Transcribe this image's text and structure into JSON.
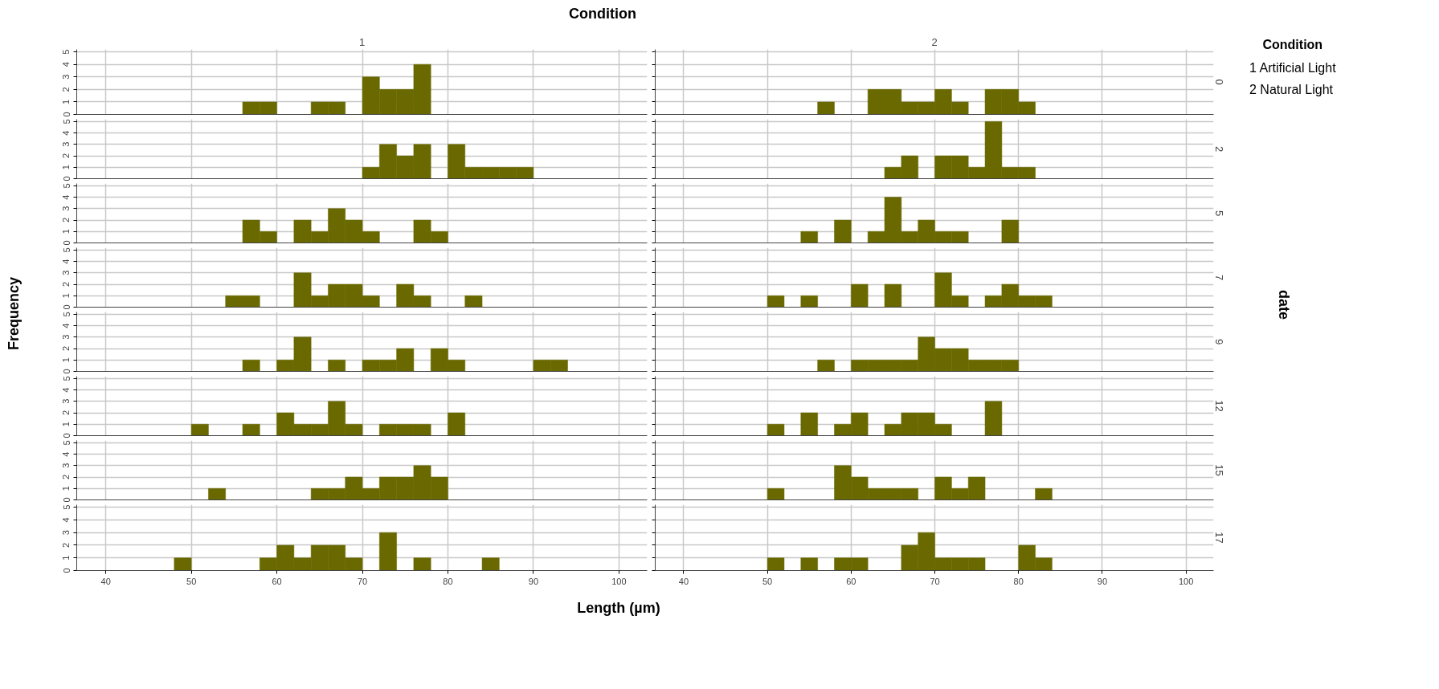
{
  "chart_data": [
    {
      "type": "histogram",
      "title": "1",
      "xlabel": "Length (µm)",
      "legend_title": "Condition",
      "annotations": [
        "Condition",
        "date",
        "Frequency",
        "1 Artificial Light",
        "2 Natural Light"
      ],
      "bins": [
        48,
        50,
        52,
        54,
        56,
        58,
        60,
        62,
        64,
        66,
        68,
        70,
        72,
        74,
        76,
        78,
        80,
        82,
        84,
        86,
        88,
        90,
        92,
        94
      ],
      "values": [
        0,
        0,
        0,
        0,
        1,
        1,
        0,
        0,
        1,
        1,
        0,
        3,
        2,
        2,
        4,
        0,
        0,
        0,
        0,
        0,
        0,
        0,
        0
      ],
      "color": "#696900",
      "xlim": [
        36.6,
        103.3
      ],
      "xticks": [
        40,
        50,
        60,
        70,
        80,
        90,
        100
      ],
      "ylim": [
        0,
        5.2
      ],
      "yticks": [
        0,
        1,
        2,
        3,
        4,
        5
      ],
      "grid": true,
      "tick_labels": "y"
    },
    {
      "type": "histogram",
      "title": "2",
      "y2label": "0",
      "bins": [
        48,
        50,
        52,
        54,
        56,
        58,
        60,
        62,
        64,
        66,
        68,
        70,
        72,
        74,
        76,
        78,
        80,
        82,
        84,
        86,
        88,
        90,
        92,
        94
      ],
      "values": [
        0,
        0,
        0,
        0,
        1,
        0,
        0,
        2,
        2,
        1,
        1,
        2,
        1,
        0,
        2,
        2,
        1,
        0,
        0,
        0,
        0,
        0,
        0
      ],
      "color": "#696900",
      "xlim": [
        36.6,
        103.3
      ],
      "xticks": [
        40,
        50,
        60,
        70,
        80,
        90,
        100
      ],
      "ylim": [
        0,
        5.2
      ],
      "yticks": [
        0,
        1,
        2,
        3,
        4,
        5
      ],
      "grid": true,
      "tick_labels": false
    },
    {
      "type": "histogram",
      "bins": [
        48,
        50,
        52,
        54,
        56,
        58,
        60,
        62,
        64,
        66,
        68,
        70,
        72,
        74,
        76,
        78,
        80,
        82,
        84,
        86,
        88,
        90,
        92,
        94
      ],
      "values": [
        0,
        0,
        0,
        0,
        0,
        0,
        0,
        0,
        0,
        0,
        0,
        1,
        3,
        2,
        3,
        0,
        3,
        1,
        1,
        1,
        1,
        0,
        0
      ],
      "color": "#696900",
      "xlim": [
        36.6,
        103.3
      ],
      "xticks": [
        40,
        50,
        60,
        70,
        80,
        90,
        100
      ],
      "ylim": [
        0,
        5.2
      ],
      "yticks": [
        0,
        1,
        2,
        3,
        4,
        5
      ],
      "grid": true,
      "tick_labels": "y"
    },
    {
      "type": "histogram",
      "y2label": "2",
      "bins": [
        48,
        50,
        52,
        54,
        56,
        58,
        60,
        62,
        64,
        66,
        68,
        70,
        72,
        74,
        76,
        78,
        80,
        82,
        84,
        86,
        88,
        90,
        92,
        94
      ],
      "values": [
        0,
        0,
        0,
        0,
        0,
        0,
        0,
        0,
        1,
        2,
        0,
        2,
        2,
        1,
        5,
        1,
        1,
        0,
        0,
        0,
        0,
        0,
        0
      ],
      "color": "#696900",
      "xlim": [
        36.6,
        103.3
      ],
      "xticks": [
        40,
        50,
        60,
        70,
        80,
        90,
        100
      ],
      "ylim": [
        0,
        5.2
      ],
      "yticks": [
        0,
        1,
        2,
        3,
        4,
        5
      ],
      "grid": true,
      "tick_labels": false
    },
    {
      "type": "histogram",
      "bins": [
        48,
        50,
        52,
        54,
        56,
        58,
        60,
        62,
        64,
        66,
        68,
        70,
        72,
        74,
        76,
        78,
        80,
        82,
        84,
        86,
        88,
        90,
        92,
        94
      ],
      "values": [
        0,
        0,
        0,
        0,
        2,
        1,
        0,
        2,
        1,
        3,
        2,
        1,
        0,
        0,
        2,
        1,
        0,
        0,
        0,
        0,
        0,
        0,
        0
      ],
      "color": "#696900",
      "xlim": [
        36.6,
        103.3
      ],
      "xticks": [
        40,
        50,
        60,
        70,
        80,
        90,
        100
      ],
      "ylim": [
        0,
        5.2
      ],
      "yticks": [
        0,
        1,
        2,
        3,
        4,
        5
      ],
      "grid": true,
      "tick_labels": "y"
    },
    {
      "type": "histogram",
      "y2label": "5",
      "bins": [
        48,
        50,
        52,
        54,
        56,
        58,
        60,
        62,
        64,
        66,
        68,
        70,
        72,
        74,
        76,
        78,
        80,
        82,
        84,
        86,
        88,
        90,
        92,
        94
      ],
      "values": [
        0,
        0,
        0,
        1,
        0,
        2,
        0,
        1,
        4,
        1,
        2,
        1,
        1,
        0,
        0,
        2,
        0,
        0,
        0,
        0,
        0,
        0,
        0
      ],
      "color": "#696900",
      "xlim": [
        36.6,
        103.3
      ],
      "xticks": [
        40,
        50,
        60,
        70,
        80,
        90,
        100
      ],
      "ylim": [
        0,
        5.2
      ],
      "yticks": [
        0,
        1,
        2,
        3,
        4,
        5
      ],
      "grid": true,
      "tick_labels": false
    },
    {
      "type": "histogram",
      "bins": [
        48,
        50,
        52,
        54,
        56,
        58,
        60,
        62,
        64,
        66,
        68,
        70,
        72,
        74,
        76,
        78,
        80,
        82,
        84,
        86,
        88,
        90,
        92,
        94
      ],
      "values": [
        0,
        0,
        0,
        1,
        1,
        0,
        0,
        3,
        1,
        2,
        2,
        1,
        0,
        2,
        1,
        0,
        0,
        1,
        0,
        0,
        0,
        0,
        0
      ],
      "color": "#696900",
      "xlim": [
        36.6,
        103.3
      ],
      "xticks": [
        40,
        50,
        60,
        70,
        80,
        90,
        100
      ],
      "ylim": [
        0,
        5.2
      ],
      "yticks": [
        0,
        1,
        2,
        3,
        4,
        5
      ],
      "grid": true,
      "tick_labels": "y"
    },
    {
      "type": "histogram",
      "y2label": "7",
      "bins": [
        48,
        50,
        52,
        54,
        56,
        58,
        60,
        62,
        64,
        66,
        68,
        70,
        72,
        74,
        76,
        78,
        80,
        82,
        84,
        86,
        88,
        90,
        92,
        94
      ],
      "values": [
        0,
        1,
        0,
        1,
        0,
        0,
        2,
        0,
        2,
        0,
        0,
        3,
        1,
        0,
        1,
        2,
        1,
        1,
        0,
        0,
        0,
        0,
        0
      ],
      "color": "#696900",
      "xlim": [
        36.6,
        103.3
      ],
      "xticks": [
        40,
        50,
        60,
        70,
        80,
        90,
        100
      ],
      "ylim": [
        0,
        5.2
      ],
      "yticks": [
        0,
        1,
        2,
        3,
        4,
        5
      ],
      "grid": true,
      "tick_labels": false
    },
    {
      "type": "histogram",
      "bins": [
        48,
        50,
        52,
        54,
        56,
        58,
        60,
        62,
        64,
        66,
        68,
        70,
        72,
        74,
        76,
        78,
        80,
        82,
        84,
        86,
        88,
        90,
        92,
        94
      ],
      "values": [
        0,
        0,
        0,
        0,
        1,
        0,
        1,
        3,
        0,
        1,
        0,
        1,
        1,
        2,
        0,
        2,
        1,
        0,
        0,
        0,
        0,
        1,
        1
      ],
      "color": "#696900",
      "xlim": [
        36.6,
        103.3
      ],
      "xticks": [
        40,
        50,
        60,
        70,
        80,
        90,
        100
      ],
      "ylim": [
        0,
        5.2
      ],
      "yticks": [
        0,
        1,
        2,
        3,
        4,
        5
      ],
      "grid": true,
      "tick_labels": "y"
    },
    {
      "type": "histogram",
      "y2label": "9",
      "bins": [
        48,
        50,
        52,
        54,
        56,
        58,
        60,
        62,
        64,
        66,
        68,
        70,
        72,
        74,
        76,
        78,
        80,
        82,
        84,
        86,
        88,
        90,
        92,
        94
      ],
      "values": [
        0,
        0,
        0,
        0,
        1,
        0,
        1,
        1,
        1,
        1,
        3,
        2,
        2,
        1,
        1,
        1,
        0,
        0,
        0,
        0,
        0,
        0,
        0
      ],
      "color": "#696900",
      "xlim": [
        36.6,
        103.3
      ],
      "xticks": [
        40,
        50,
        60,
        70,
        80,
        90,
        100
      ],
      "ylim": [
        0,
        5.2
      ],
      "yticks": [
        0,
        1,
        2,
        3,
        4,
        5
      ],
      "grid": true,
      "tick_labels": false
    },
    {
      "type": "histogram",
      "bins": [
        48,
        50,
        52,
        54,
        56,
        58,
        60,
        62,
        64,
        66,
        68,
        70,
        72,
        74,
        76,
        78,
        80,
        82,
        84,
        86,
        88,
        90,
        92,
        94
      ],
      "values": [
        0,
        1,
        0,
        0,
        1,
        0,
        2,
        1,
        1,
        3,
        1,
        0,
        1,
        1,
        1,
        0,
        2,
        0,
        0,
        0,
        0,
        0,
        0
      ],
      "color": "#696900",
      "xlim": [
        36.6,
        103.3
      ],
      "xticks": [
        40,
        50,
        60,
        70,
        80,
        90,
        100
      ],
      "ylim": [
        0,
        5.2
      ],
      "yticks": [
        0,
        1,
        2,
        3,
        4,
        5
      ],
      "grid": true,
      "tick_labels": "y"
    },
    {
      "type": "histogram",
      "y2label": "12",
      "bins": [
        48,
        50,
        52,
        54,
        56,
        58,
        60,
        62,
        64,
        66,
        68,
        70,
        72,
        74,
        76,
        78,
        80,
        82,
        84,
        86,
        88,
        90,
        92,
        94
      ],
      "values": [
        0,
        1,
        0,
        2,
        0,
        1,
        2,
        0,
        1,
        2,
        2,
        1,
        0,
        0,
        3,
        0,
        0,
        0,
        0,
        0,
        0,
        0,
        0
      ],
      "color": "#696900",
      "xlim": [
        36.6,
        103.3
      ],
      "xticks": [
        40,
        50,
        60,
        70,
        80,
        90,
        100
      ],
      "ylim": [
        0,
        5.2
      ],
      "yticks": [
        0,
        1,
        2,
        3,
        4,
        5
      ],
      "grid": true,
      "tick_labels": false
    },
    {
      "type": "histogram",
      "bins": [
        48,
        50,
        52,
        54,
        56,
        58,
        60,
        62,
        64,
        66,
        68,
        70,
        72,
        74,
        76,
        78,
        80,
        82,
        84,
        86,
        88,
        90,
        92,
        94
      ],
      "values": [
        0,
        0,
        1,
        0,
        0,
        0,
        0,
        0,
        1,
        1,
        2,
        1,
        2,
        2,
        3,
        2,
        0,
        0,
        0,
        0,
        0,
        0,
        0
      ],
      "color": "#696900",
      "xlim": [
        36.6,
        103.3
      ],
      "xticks": [
        40,
        50,
        60,
        70,
        80,
        90,
        100
      ],
      "ylim": [
        0,
        5.2
      ],
      "yticks": [
        0,
        1,
        2,
        3,
        4,
        5
      ],
      "grid": true,
      "tick_labels": "y"
    },
    {
      "type": "histogram",
      "y2label": "15",
      "bins": [
        48,
        50,
        52,
        54,
        56,
        58,
        60,
        62,
        64,
        66,
        68,
        70,
        72,
        74,
        76,
        78,
        80,
        82,
        84,
        86,
        88,
        90,
        92,
        94
      ],
      "values": [
        0,
        1,
        0,
        0,
        0,
        3,
        2,
        1,
        1,
        1,
        0,
        2,
        1,
        2,
        0,
        0,
        0,
        1,
        0,
        0,
        0,
        0,
        0
      ],
      "color": "#696900",
      "xlim": [
        36.6,
        103.3
      ],
      "xticks": [
        40,
        50,
        60,
        70,
        80,
        90,
        100
      ],
      "ylim": [
        0,
        5.2
      ],
      "yticks": [
        0,
        1,
        2,
        3,
        4,
        5
      ],
      "grid": true,
      "tick_labels": false
    },
    {
      "type": "histogram",
      "bins": [
        48,
        50,
        52,
        54,
        56,
        58,
        60,
        62,
        64,
        66,
        68,
        70,
        72,
        74,
        76,
        78,
        80,
        82,
        84,
        86,
        88,
        90,
        92,
        94
      ],
      "values": [
        1,
        0,
        0,
        0,
        0,
        1,
        2,
        1,
        2,
        2,
        1,
        0,
        3,
        0,
        1,
        0,
        0,
        0,
        1,
        0,
        0,
        0,
        0
      ],
      "color": "#696900",
      "xlim": [
        36.6,
        103.3
      ],
      "xticks": [
        40,
        50,
        60,
        70,
        80,
        90,
        100
      ],
      "ylim": [
        0,
        5.2
      ],
      "yticks": [
        0,
        1,
        2,
        3,
        4,
        5
      ],
      "grid": true
    },
    {
      "type": "histogram",
      "y2label": "17",
      "bins": [
        48,
        50,
        52,
        54,
        56,
        58,
        60,
        62,
        64,
        66,
        68,
        70,
        72,
        74,
        76,
        78,
        80,
        82,
        84,
        86,
        88,
        90,
        92,
        94
      ],
      "values": [
        0,
        1,
        0,
        1,
        0,
        1,
        1,
        0,
        0,
        2,
        3,
        1,
        1,
        1,
        0,
        0,
        2,
        1,
        0,
        0,
        0,
        0,
        0
      ],
      "color": "#696900",
      "xlim": [
        36.6,
        103.3
      ],
      "xticks": [
        40,
        50,
        60,
        70,
        80,
        90,
        100
      ],
      "ylim": [
        0,
        5.2
      ],
      "yticks": [
        0,
        1,
        2,
        3,
        4,
        5
      ],
      "grid": true,
      "tick_labels": "x"
    }
  ]
}
